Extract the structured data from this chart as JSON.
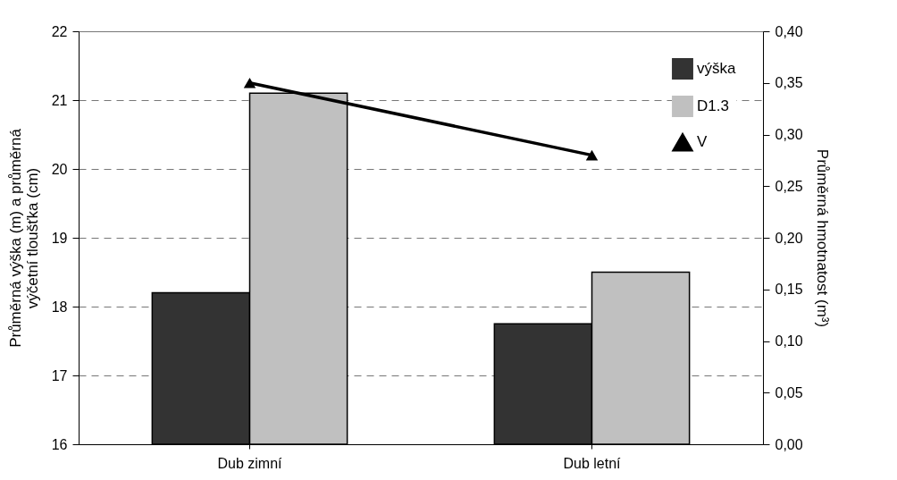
{
  "chart_data": {
    "type": "bar",
    "categories": [
      "Dub zimní",
      "Dub letní"
    ],
    "series": [
      {
        "name": "výška",
        "color": "#333333",
        "values": [
          18.2,
          17.75
        ]
      },
      {
        "name": "D1.3",
        "color": "#c0c0c0",
        "values": [
          21.1,
          18.5
        ]
      },
      {
        "name": "V",
        "type": "line",
        "axis": "y2",
        "color": "#000000",
        "marker": "triangle",
        "line_style": "solid",
        "values": [
          0.35,
          0.28
        ]
      }
    ],
    "ylabel": "Průměrná výška (m) a průměrná výčetní tloušťka (cm)",
    "y2label": "Průměrná hmotnatost (m³)",
    "ylim": [
      16,
      22
    ],
    "yticks": [
      16,
      17,
      18,
      19,
      20,
      21,
      22
    ],
    "y2lim": [
      0,
      0.4
    ],
    "y2ticks": [
      {
        "value": 0,
        "label": "0,00"
      },
      {
        "value": 0.05,
        "label": "0,05"
      },
      {
        "value": 0.1,
        "label": "0,10"
      },
      {
        "value": 0.15,
        "label": "0,15"
      },
      {
        "value": 0.2,
        "label": "0,20"
      },
      {
        "value": 0.25,
        "label": "0,25"
      },
      {
        "value": 0.3,
        "label": "0,30"
      },
      {
        "value": 0.35,
        "label": "0,35"
      },
      {
        "value": 0.4,
        "label": "0,40"
      }
    ],
    "grid": "y",
    "legend": "top right"
  }
}
